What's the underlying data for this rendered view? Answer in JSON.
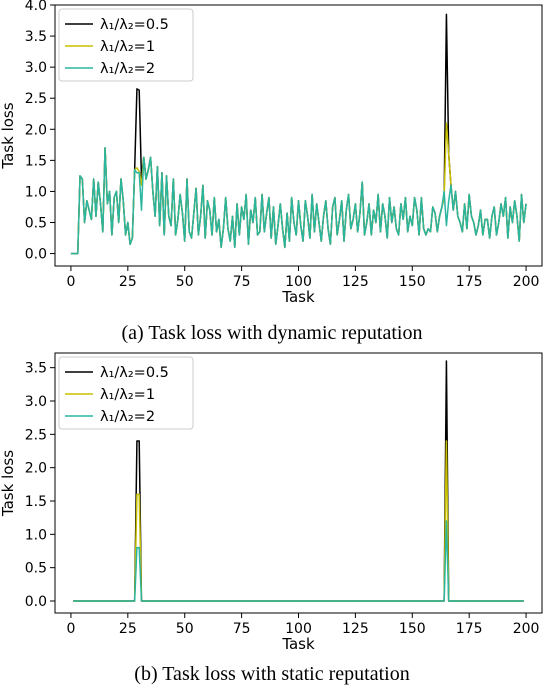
{
  "chart_data": [
    {
      "type": "line",
      "caption": "(a) Task loss with dynamic reputation",
      "xlabel": "Task",
      "ylabel": "Task loss",
      "xlim": [
        -7,
        207
      ],
      "ylim": [
        -0.2,
        4.0
      ],
      "xticks": [
        0,
        25,
        50,
        75,
        100,
        125,
        150,
        175,
        200
      ],
      "yticks": [
        0.0,
        0.5,
        1.0,
        1.5,
        2.0,
        2.5,
        3.0,
        3.5,
        4.0
      ],
      "ytick_labels": [
        "0.0",
        "0.5",
        "1.0",
        "1.5",
        "2.0",
        "2.5",
        "3.0",
        "3.5",
        "4.0"
      ],
      "grid": false,
      "legend": "top-left",
      "series": [
        {
          "name": "λ₁/λ₂=0.5",
          "color": "#000000",
          "spikes": [
            [
              28,
              1.35
            ],
            [
              29,
              2.65
            ],
            [
              30,
              2.63
            ],
            [
              31,
              1.2
            ],
            [
              164,
              0.9
            ],
            [
              165,
              3.85
            ],
            [
              166,
              1.6
            ]
          ]
        },
        {
          "name": "λ₁/λ₂=1",
          "color": "#c8c000",
          "spikes": [
            [
              28,
              1.35
            ],
            [
              29,
              1.38
            ],
            [
              30,
              1.32
            ],
            [
              31,
              1.1
            ],
            [
              164,
              0.9
            ],
            [
              165,
              2.1
            ],
            [
              166,
              1.6
            ]
          ]
        },
        {
          "name": "λ₁/λ₂=2",
          "color": "#2ab5a0",
          "values": [
            0.0,
            0.0,
            0.0,
            0.0,
            1.25,
            1.2,
            0.5,
            0.85,
            0.7,
            0.55,
            1.2,
            0.6,
            1.15,
            0.8,
            0.35,
            1.7,
            0.8,
            1.0,
            0.3,
            0.9,
            1.0,
            0.5,
            1.2,
            0.85,
            0.3,
            0.5,
            0.15,
            0.25,
            1.35,
            1.3,
            1.3,
            0.7,
            1.55,
            1.2,
            1.35,
            1.55,
            1.0,
            0.6,
            1.4,
            0.45,
            1.3,
            0.3,
            1.25,
            0.6,
            0.45,
            1.2,
            0.3,
            0.55,
            0.95,
            0.65,
            0.2,
            1.2,
            0.35,
            0.25,
            0.65,
            1.05,
            0.3,
            0.6,
            1.1,
            0.25,
            0.85,
            0.7,
            0.3,
            0.9,
            0.35,
            0.55,
            0.1,
            0.4,
            0.9,
            0.4,
            0.2,
            0.6,
            0.1,
            0.8,
            0.3,
            0.75,
            0.55,
            0.95,
            0.15,
            0.7,
            0.5,
            0.9,
            0.3,
            0.35,
            0.95,
            0.35,
            0.65,
            0.9,
            0.25,
            0.75,
            0.15,
            0.45,
            0.8,
            0.4,
            0.1,
            0.65,
            0.2,
            0.9,
            0.5,
            0.3,
            0.85,
            0.45,
            0.2,
            0.85,
            0.6,
            0.25,
            0.95,
            0.35,
            0.8,
            0.5,
            0.2,
            0.6,
            0.85,
            0.4,
            0.15,
            0.75,
            0.9,
            0.3,
            0.55,
            0.85,
            0.2,
            0.7,
            0.95,
            0.4,
            0.55,
            0.8,
            0.35,
            0.65,
            1.15,
            0.3,
            0.5,
            0.8,
            0.3,
            0.7,
            0.5,
            0.95,
            0.35,
            0.8,
            0.6,
            0.25,
            0.9,
            0.5,
            0.75,
            0.4,
            0.3,
            0.8,
            0.55,
            0.9,
            0.35,
            0.6,
            0.45,
            0.9,
            0.7,
            0.3,
            0.9,
            0.4,
            0.3,
            0.4,
            0.35,
            0.75,
            0.65,
            0.35,
            0.6,
            0.75,
            1.0,
            0.45,
            0.85,
            1.1,
            0.7,
            1.0,
            0.6,
            0.5,
            0.35,
            0.8,
            0.4,
            0.95,
            0.6,
            0.5,
            0.3,
            0.45,
            0.7,
            0.3,
            0.55,
            0.55,
            0.25,
            0.6,
            0.75,
            0.3,
            0.5,
            0.8,
            0.6,
            0.9,
            0.25,
            0.75,
            0.5,
            0.85,
            0.6,
            0.2,
            0.95,
            0.5,
            0.8
          ]
        }
      ]
    },
    {
      "type": "line",
      "caption": "(b) Task loss with static reputation",
      "xlabel": "Task",
      "ylabel": "Task loss",
      "xlim": [
        -7,
        207
      ],
      "ylim": [
        -0.18,
        3.72
      ],
      "xticks": [
        0,
        25,
        50,
        75,
        100,
        125,
        150,
        175,
        200
      ],
      "yticks": [
        0.0,
        0.5,
        1.0,
        1.5,
        2.0,
        2.5,
        3.0,
        3.5
      ],
      "ytick_labels": [
        "0.0",
        "0.5",
        "1.0",
        "1.5",
        "2.0",
        "2.5",
        "3.0",
        "3.5"
      ],
      "grid": false,
      "legend": "top-left",
      "series": [
        {
          "name": "λ₁/λ₂=0.5",
          "color": "#000000",
          "points": [
            [
              1,
              0
            ],
            [
              28,
              0
            ],
            [
              29,
              2.4
            ],
            [
              30,
              2.4
            ],
            [
              31,
              0
            ],
            [
              164,
              0
            ],
            [
              165,
              3.6
            ],
            [
              166,
              0
            ],
            [
              199,
              0
            ]
          ]
        },
        {
          "name": "λ₁/λ₂=1",
          "color": "#c8c000",
          "points": [
            [
              1,
              0
            ],
            [
              28,
              0
            ],
            [
              29,
              1.6
            ],
            [
              30,
              1.6
            ],
            [
              31,
              0
            ],
            [
              164,
              0
            ],
            [
              165,
              2.4
            ],
            [
              166,
              0
            ],
            [
              199,
              0
            ]
          ]
        },
        {
          "name": "λ₁/λ₂=2",
          "color": "#2ab5a0",
          "points": [
            [
              1,
              0
            ],
            [
              28,
              0
            ],
            [
              29,
              0.8
            ],
            [
              30,
              0.8
            ],
            [
              31,
              0
            ],
            [
              164,
              0
            ],
            [
              165,
              1.2
            ],
            [
              166,
              0
            ],
            [
              199,
              0
            ]
          ]
        }
      ]
    }
  ]
}
